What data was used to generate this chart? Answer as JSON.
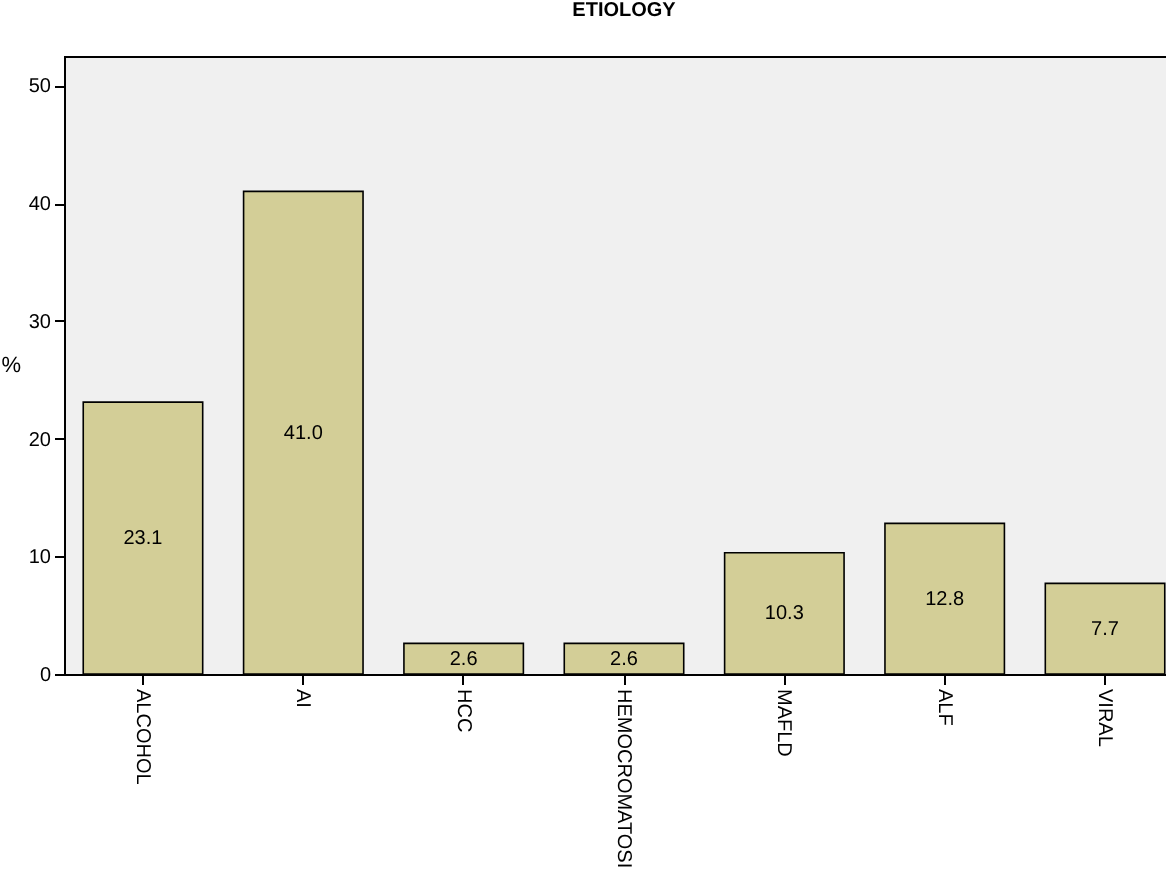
{
  "chart_data": {
    "type": "bar",
    "title": "ETIOLOGY",
    "ylabel": "%",
    "categories": [
      "ALCOHOL",
      "AI",
      "HCC",
      "HEMOCROMATOSI",
      "MAFLD",
      "ALF",
      "VIRAL"
    ],
    "values": [
      23.1,
      41.0,
      2.6,
      2.6,
      10.3,
      12.8,
      7.7
    ],
    "value_labels": [
      "23.1",
      "41.0",
      "2.6",
      "2.6",
      "10.3",
      "12.8",
      "7.7"
    ],
    "color": "#d3ce97",
    "ylim": [
      0,
      52.5
    ],
    "yticks": [
      0,
      10,
      20,
      30,
      40,
      50
    ],
    "grid": false
  }
}
